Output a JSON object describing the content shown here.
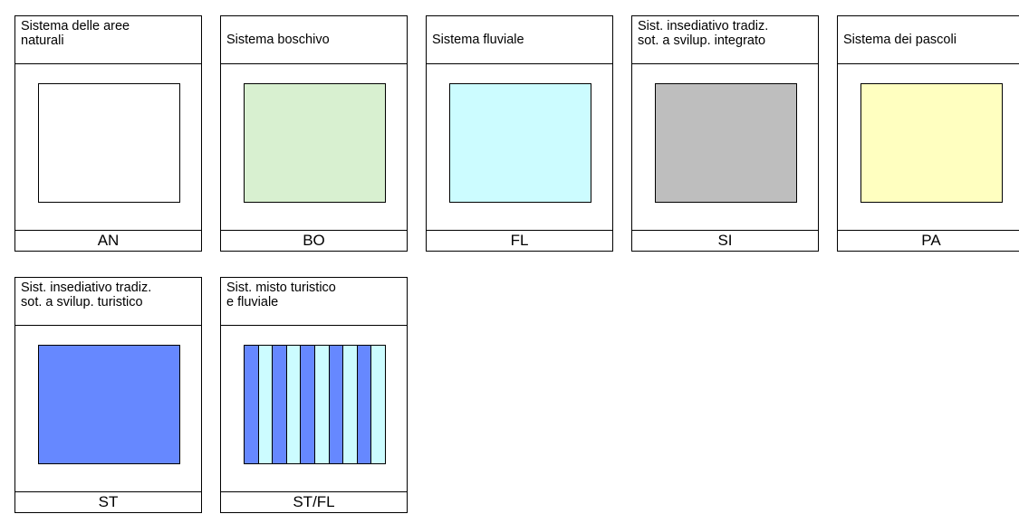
{
  "legend": {
    "items": [
      {
        "id": "AN",
        "title": "Sistema delle aree\nnaturali",
        "code": "AN",
        "fill": "#FFFFFF",
        "pattern": "solid"
      },
      {
        "id": "BO",
        "title": "Sistema boschivo",
        "code": "BO",
        "fill": "#D8F0D0",
        "pattern": "solid"
      },
      {
        "id": "FL",
        "title": "Sistema fluviale",
        "code": "FL",
        "fill": "#CCFCFF",
        "pattern": "solid"
      },
      {
        "id": "SI",
        "title": "Sist. insediativo tradiz.\nsot. a svilup. integrato",
        "code": "SI",
        "fill": "#BEBEBE",
        "pattern": "solid"
      },
      {
        "id": "PA",
        "title": "Sistema dei pascoli",
        "code": "PA",
        "fill": "#FFFFC0",
        "pattern": "solid"
      },
      {
        "id": "ST",
        "title": "Sist. insediativo tradiz.\nsot. a svilup. turistico",
        "code": "ST",
        "fill": "#6688FF",
        "pattern": "solid"
      },
      {
        "id": "STFL",
        "title": "Sist. misto turistico\ne fluviale",
        "code": "ST/FL",
        "pattern": "stripes",
        "stripe_colors": [
          "#6688FF",
          "#CCFCFF"
        ],
        "stripe_count": 10
      }
    ]
  }
}
